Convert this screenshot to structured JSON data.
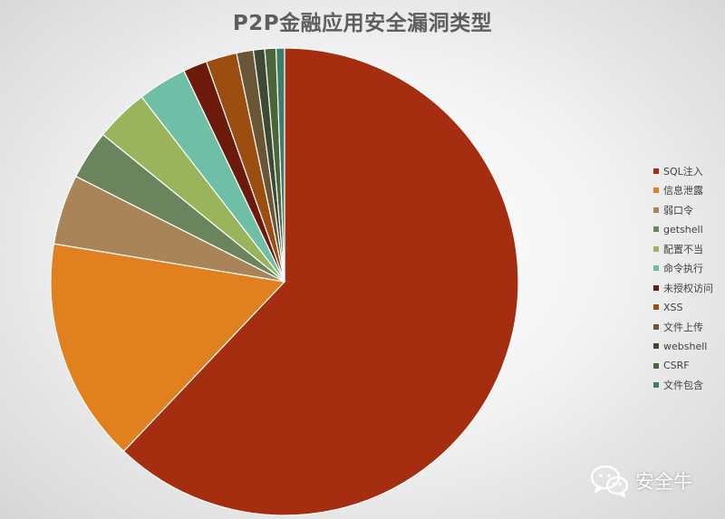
{
  "chart_data": {
    "type": "pie",
    "title": "P2P金融应用安全漏洞类型",
    "start_angle_deg": 0,
    "direction": "clockwise",
    "legend_position": "right",
    "slices": [
      {
        "label": "SQL注入",
        "value": 64.0,
        "color": "#a52d10"
      },
      {
        "label": "信息泄露",
        "value": 16.0,
        "color": "#e0801e"
      },
      {
        "label": "弱口令",
        "value": 5.0,
        "color": "#a88458"
      },
      {
        "label": "getshell",
        "value": 3.5,
        "color": "#6a855e"
      },
      {
        "label": "配置不当",
        "value": 3.8,
        "color": "#99b45a"
      },
      {
        "label": "命令执行",
        "value": 3.5,
        "color": "#6fbfa6"
      },
      {
        "label": "未授权访问",
        "value": 1.7,
        "color": "#6c1a0c"
      },
      {
        "label": "XSS",
        "value": 2.2,
        "color": "#9c4e10"
      },
      {
        "label": "文件上传",
        "value": 1.2,
        "color": "#6a5535"
      },
      {
        "label": "webshell",
        "value": 0.8,
        "color": "#3f4a35"
      },
      {
        "label": "CSRF",
        "value": 0.8,
        "color": "#4a6638"
      },
      {
        "label": "文件包含",
        "value": 0.6,
        "color": "#3c7d6b"
      }
    ]
  },
  "watermark": {
    "text": "安全牛",
    "icon": "wechat-icon"
  }
}
